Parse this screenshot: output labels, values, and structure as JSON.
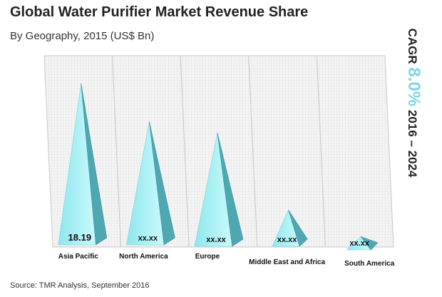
{
  "header": {
    "title": "Global Water Purifier Market Revenue Share",
    "subtitle": "By Geography, 2015 (US$ Bn)"
  },
  "footer": {
    "source": "Source: TMR Analysis, September 2016"
  },
  "cagr": {
    "prefix": "CAGR",
    "value": "8.0%",
    "period": "2016 – 2024"
  },
  "colors": {
    "pyramid_front": "#aef3f6",
    "pyramid_side": "#4fa7b2",
    "accent": "#7fd6e4"
  },
  "chart_data": {
    "type": "bar",
    "categories": [
      "Asia Pacific",
      "North America",
      "Europe",
      "Middle East and Africa",
      "South America"
    ],
    "value_labels": [
      "18.19",
      "xx.xx",
      "xx.xx",
      "xx.xx",
      "xx.xx"
    ],
    "values": [
      18.19,
      13.9,
      12.8,
      4.1,
      1.5
    ],
    "title": "Global Water Purifier Market Revenue Share",
    "xlabel": "",
    "ylabel": "",
    "ylim": [
      0,
      19
    ]
  }
}
